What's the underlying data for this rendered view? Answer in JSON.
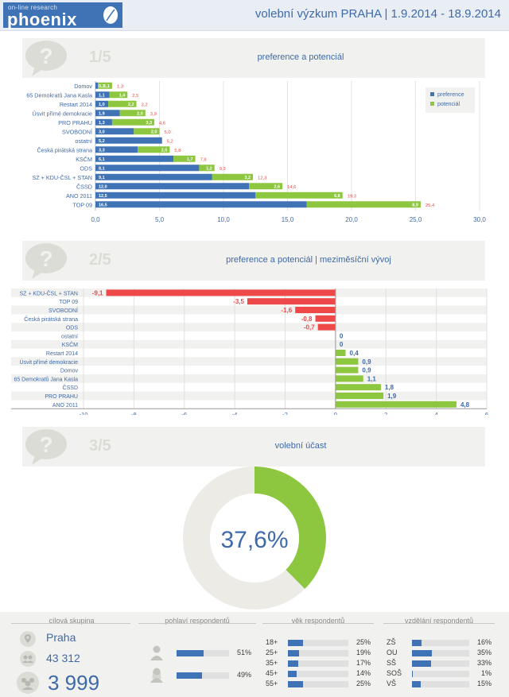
{
  "header": {
    "logo_small": "on-line research",
    "logo_name": "phoenix",
    "title": "volební výzkum PRAHA  |  1.9.2014 - 18.9.2014"
  },
  "sections": {
    "s1": {
      "num": "1/5",
      "title": "preference a potenciál"
    },
    "s2": {
      "num": "2/5",
      "title": "preference a potenciál  |  meziměsíční vývoj"
    },
    "s3": {
      "num": "3/5",
      "title": "volební účast"
    }
  },
  "chart_data": [
    {
      "type": "bar",
      "orientation": "horizontal",
      "stacked": true,
      "title": "preference a potenciál",
      "categories": [
        "Domov",
        "65 Demokratů Jana Kasla",
        "Restart 2014",
        "Úsvit přímé demokracie",
        "PRO PRAHU",
        "SVOBODNÍ",
        "ostatní",
        "Česká pirátská strana",
        "KSČM",
        "ODS",
        "SZ + KDU-ČSL + STAN",
        "ČSSD",
        "ANO 2011",
        "TOP 09"
      ],
      "series": [
        {
          "name": "preference",
          "color": "#3f73b5",
          "values": [
            0.2,
            1.1,
            1.0,
            1.9,
            1.3,
            3.0,
            5.2,
            3.3,
            6.1,
            8.1,
            9.1,
            12.0,
            12.5,
            16.5
          ]
        },
        {
          "name": "potenciál",
          "color": "#8dc63f",
          "values": [
            1.1,
            1.4,
            2.2,
            2.0,
            3.3,
            2.0,
            0,
            2.5,
            1.7,
            1.2,
            3.2,
            2.6,
            6.8,
            8.9
          ]
        }
      ],
      "value_labels": {
        "preference": [
          "0,2",
          "1,1",
          "1,0",
          "1,9",
          "1,3",
          "3,0",
          "5,2",
          "3,3",
          "6,1",
          "8,1",
          "9,1",
          "12,0",
          "12,5",
          "16,5"
        ],
        "potenciál": [
          "1,1",
          "1,4",
          "2,2",
          "2,0",
          "3,3",
          "2,0",
          "",
          "2,5",
          "1,7",
          "1,2",
          "3,2",
          "2,6",
          "6,8",
          "8,9"
        ],
        "total": [
          "1,3",
          "2,5",
          "3,2",
          "3,9",
          "4,6",
          "5,0",
          "5,2",
          "5,8",
          "7,8",
          "9,3",
          "12,3",
          "14,6",
          "19,3",
          "25,4"
        ]
      },
      "xlim": [
        0,
        30
      ],
      "xticks": [
        "0,0",
        "5,0",
        "10,0",
        "15,0",
        "20,0",
        "25,0",
        "30,0"
      ],
      "legend": [
        "preference",
        "potenciál"
      ],
      "legend_position": "top-right"
    },
    {
      "type": "bar",
      "orientation": "horizontal",
      "title": "preference a potenciál | meziměsíční vývoj",
      "categories": [
        "SZ + KDU-ČSL + STAN",
        "TOP 09",
        "SVOBODNÍ",
        "Česká pirátská strana",
        "ODS",
        "ostatní",
        "KSČM",
        "Restart 2014",
        "Úsvit přímé demokracie",
        "Domov",
        "65 Demokratů Jana Kasla",
        "ČSSD",
        "PRO PRAHU",
        "ANO 2011"
      ],
      "values": [
        -9.1,
        -3.5,
        -1.6,
        -0.8,
        -0.7,
        0,
        0,
        0.4,
        0.9,
        0.9,
        1.1,
        1.8,
        1.9,
        4.8
      ],
      "value_labels": [
        "-9,1",
        "-3,5",
        "-1,6",
        "-0,8",
        "-0,7",
        "0",
        "0",
        "0,4",
        "0,9",
        "0,9",
        "1,1",
        "1,8",
        "1,9",
        "4,8"
      ],
      "negative_color": "#ef4848",
      "positive_color": "#8dc63f",
      "xlim": [
        -10,
        6
      ],
      "xticks": [
        "-10",
        "-8",
        "-6",
        "-4",
        "-2",
        "0",
        "2",
        "4",
        "6"
      ]
    },
    {
      "type": "pie",
      "title": "volební účast",
      "values": [
        37.6,
        62.4
      ],
      "colors": [
        "#8dc63f",
        "#ecebe6"
      ],
      "center_label": "37,6%"
    }
  ],
  "footer": {
    "target_group": {
      "heading": "cílová skupina",
      "city": "Praha",
      "population": "43 312",
      "respondents": "3 999"
    },
    "gender": {
      "heading": "pohlaví respondentů",
      "rows": [
        {
          "label": "male",
          "value": 51,
          "pct": "51%"
        },
        {
          "label": "female",
          "value": 49,
          "pct": "49%"
        }
      ]
    },
    "age": {
      "heading": "věk respondentů",
      "rows": [
        {
          "label": "18+",
          "value": 25,
          "pct": "25%"
        },
        {
          "label": "25+",
          "value": 19,
          "pct": "19%"
        },
        {
          "label": "35+",
          "value": 17,
          "pct": "17%"
        },
        {
          "label": "45+",
          "value": 14,
          "pct": "14%"
        },
        {
          "label": "55+",
          "value": 25,
          "pct": "25%"
        }
      ]
    },
    "education": {
      "heading": "vzdělání respondentů",
      "rows": [
        {
          "label": "ZŠ",
          "value": 16,
          "pct": "16%"
        },
        {
          "label": "OU",
          "value": 35,
          "pct": "35%"
        },
        {
          "label": "SŠ",
          "value": 33,
          "pct": "33%"
        },
        {
          "label": "SOŠ",
          "value": 1,
          "pct": "1%"
        },
        {
          "label": "VŠ",
          "value": 15,
          "pct": "15%"
        }
      ]
    }
  }
}
